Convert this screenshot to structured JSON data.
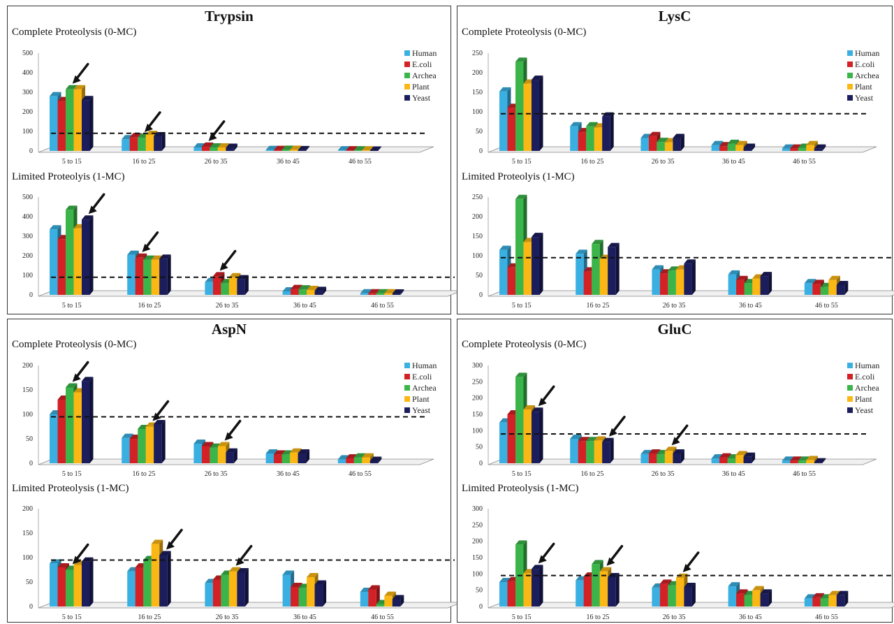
{
  "chart_data": [
    {
      "type": "bar",
      "title": "Trypsin",
      "categories": [
        "5 to 15",
        "16 to 25",
        "26 to 35",
        "36 to 45",
        "46 to 55"
      ],
      "legend": [
        "Human",
        "E.coli",
        "Archea",
        "Plant",
        "Yeast"
      ],
      "subplots": [
        {
          "subtitle": "Complete Proteolysis (0-MC)",
          "ylim": [
            0,
            500
          ],
          "yticks": [
            0,
            100,
            200,
            300,
            400,
            500
          ],
          "reference_line": 90,
          "arrows": [
            [
              0,
              2
            ],
            [
              1,
              2
            ],
            [
              2,
              1
            ]
          ],
          "series": [
            {
              "name": "Human",
              "values": [
                280,
                60,
                18,
                5,
                3
              ]
            },
            {
              "name": "E.coli",
              "values": [
                255,
                70,
                22,
                5,
                3
              ]
            },
            {
              "name": "Archea",
              "values": [
                315,
                68,
                18,
                6,
                3
              ]
            },
            {
              "name": "Plant",
              "values": [
                315,
                82,
                18,
                6,
                3
              ]
            },
            {
              "name": "Yeast",
              "values": [
                260,
                75,
                16,
                4,
                2
              ]
            }
          ]
        },
        {
          "subtitle": "Limited Proteolyis (1-MC)",
          "ylim": [
            0,
            500
          ],
          "yticks": [
            0,
            100,
            200,
            300,
            400,
            500
          ],
          "reference_line": 90,
          "arrows": [
            [
              0,
              4
            ],
            [
              1,
              1
            ],
            [
              2,
              1
            ]
          ],
          "series": [
            {
              "name": "Human",
              "values": [
                335,
                205,
                65,
                18,
                8
              ]
            },
            {
              "name": "E.coli",
              "values": [
                285,
                190,
                95,
                30,
                8
              ]
            },
            {
              "name": "Archea",
              "values": [
                435,
                180,
                60,
                28,
                8
              ]
            },
            {
              "name": "Plant",
              "values": [
                340,
                180,
                90,
                25,
                8
              ]
            },
            {
              "name": "Yeast",
              "values": [
                385,
                185,
                80,
                20,
                7
              ]
            }
          ]
        }
      ]
    },
    {
      "type": "bar",
      "title": "LysC",
      "categories": [
        "5 to 15",
        "16 to 25",
        "26 to 35",
        "36 to 45",
        "46 to 55"
      ],
      "legend": [
        "Human",
        "E.coli",
        "Archea",
        "Plant",
        "Yeast"
      ],
      "subplots": [
        {
          "subtitle": "Complete Proteolysis (0-MC)",
          "ylim": [
            0,
            250
          ],
          "yticks": [
            0,
            50,
            100,
            150,
            200,
            250
          ],
          "reference_line": 95,
          "arrows": [],
          "series": [
            {
              "name": "Human",
              "values": [
                152,
                63,
                33,
                15,
                6
              ]
            },
            {
              "name": "E.coli",
              "values": [
                110,
                48,
                38,
                12,
                6
              ]
            },
            {
              "name": "Archea",
              "values": [
                228,
                63,
                23,
                18,
                8
              ]
            },
            {
              "name": "Plant",
              "values": [
                172,
                60,
                22,
                15,
                15
              ]
            },
            {
              "name": "Yeast",
              "values": [
                182,
                88,
                33,
                8,
                6
              ]
            }
          ]
        },
        {
          "subtitle": "Limited Proteolyis (1-MC)",
          "ylim": [
            0,
            250
          ],
          "yticks": [
            0,
            50,
            100,
            150,
            200,
            250
          ],
          "reference_line": 95,
          "arrows": [],
          "series": [
            {
              "name": "Human",
              "values": [
                115,
                105,
                65,
                52,
                30
              ]
            },
            {
              "name": "E.coli",
              "values": [
                70,
                60,
                55,
                38,
                28
              ]
            },
            {
              "name": "Archea",
              "values": [
                245,
                130,
                62,
                30,
                20
              ]
            },
            {
              "name": "Plant",
              "values": [
                135,
                92,
                65,
                42,
                38
              ]
            },
            {
              "name": "Yeast",
              "values": [
                148,
                122,
                80,
                48,
                25
              ]
            }
          ]
        }
      ]
    },
    {
      "type": "bar",
      "title": "AspN",
      "categories": [
        "5 to 15",
        "16 to 25",
        "26 to 35",
        "36 to 45",
        "46 to 55"
      ],
      "legend": [
        "Human",
        "E.coli",
        "Archea",
        "Plant",
        "Yeast"
      ],
      "subplots": [
        {
          "subtitle": "Complete Proteolysis (0-MC)",
          "ylim": [
            0,
            200
          ],
          "yticks": [
            0,
            50,
            100,
            150,
            200
          ],
          "reference_line": 95,
          "arrows": [
            [
              0,
              2
            ],
            [
              1,
              3
            ],
            [
              2,
              3
            ]
          ],
          "series": [
            {
              "name": "Human",
              "values": [
                100,
                52,
                40,
                20,
                8
              ]
            },
            {
              "name": "E.coli",
              "values": [
                130,
                50,
                35,
                18,
                10
              ]
            },
            {
              "name": "Archea",
              "values": [
                155,
                70,
                32,
                18,
                12
              ]
            },
            {
              "name": "Plant",
              "values": [
                145,
                75,
                35,
                22,
                12
              ]
            },
            {
              "name": "Yeast",
              "values": [
                168,
                80,
                22,
                20,
                5
              ]
            }
          ]
        },
        {
          "subtitle": "Limited Proteolysis (1-MC)",
          "ylim": [
            0,
            200
          ],
          "yticks": [
            0,
            50,
            100,
            150,
            200
          ],
          "reference_line": 95,
          "arrows": [
            [
              0,
              2
            ],
            [
              1,
              4
            ],
            [
              2,
              3
            ]
          ],
          "series": [
            {
              "name": "Human",
              "values": [
                88,
                72,
                48,
                65,
                30
              ]
            },
            {
              "name": "E.coli",
              "values": [
                80,
                80,
                55,
                40,
                35
              ]
            },
            {
              "name": "Archea",
              "values": [
                75,
                95,
                65,
                38,
                5
              ]
            },
            {
              "name": "Plant",
              "values": [
                85,
                128,
                72,
                60,
                22
              ]
            },
            {
              "name": "Yeast",
              "values": [
                92,
                105,
                70,
                45,
                15
              ]
            }
          ]
        }
      ]
    },
    {
      "type": "bar",
      "title": "GluC",
      "categories": [
        "5 to 15",
        "16 to 25",
        "26 to 35",
        "36 to 45",
        "46 to 55"
      ],
      "legend": [
        "Human",
        "E.coli",
        "Archea",
        "Plant",
        "Yeast"
      ],
      "subplots": [
        {
          "subtitle": "Complete Proteolysis (0-MC)",
          "ylim": [
            0,
            300
          ],
          "yticks": [
            0,
            50,
            100,
            150,
            200,
            250,
            300
          ],
          "reference_line": 90,
          "arrows": [
            [
              0,
              4
            ],
            [
              1,
              4
            ],
            [
              2,
              3
            ]
          ],
          "series": [
            {
              "name": "Human",
              "values": [
                125,
                75,
                28,
                15,
                8
              ]
            },
            {
              "name": "E.coli",
              "values": [
                150,
                68,
                30,
                18,
                8
              ]
            },
            {
              "name": "Archea",
              "values": [
                265,
                68,
                28,
                15,
                8
              ]
            },
            {
              "name": "Plant",
              "values": [
                165,
                70,
                38,
                25,
                10
              ]
            },
            {
              "name": "Yeast",
              "values": [
                158,
                65,
                30,
                20,
                3
              ]
            }
          ]
        },
        {
          "subtitle": "Limited Proteolysis (1-MC)",
          "ylim": [
            0,
            300
          ],
          "yticks": [
            0,
            50,
            100,
            150,
            200,
            250,
            300
          ],
          "reference_line": 95,
          "arrows": [
            [
              0,
              4
            ],
            [
              1,
              3
            ],
            [
              2,
              3
            ]
          ],
          "series": [
            {
              "name": "Human",
              "values": [
                75,
                80,
                58,
                62,
                25
              ]
            },
            {
              "name": "E.coli",
              "values": [
                78,
                92,
                70,
                40,
                28
              ]
            },
            {
              "name": "Archea",
              "values": [
                190,
                130,
                65,
                35,
                25
              ]
            },
            {
              "name": "Plant",
              "values": [
                102,
                108,
                88,
                50,
                35
              ]
            },
            {
              "name": "Yeast",
              "values": [
                115,
                90,
                60,
                40,
                35
              ]
            }
          ]
        }
      ]
    }
  ],
  "colors": {
    "Human": "#3ab0e2",
    "E.coli": "#d32126",
    "Archea": "#3bb54a",
    "Plant": "#fbb713",
    "Yeast": "#1b1d5c"
  }
}
